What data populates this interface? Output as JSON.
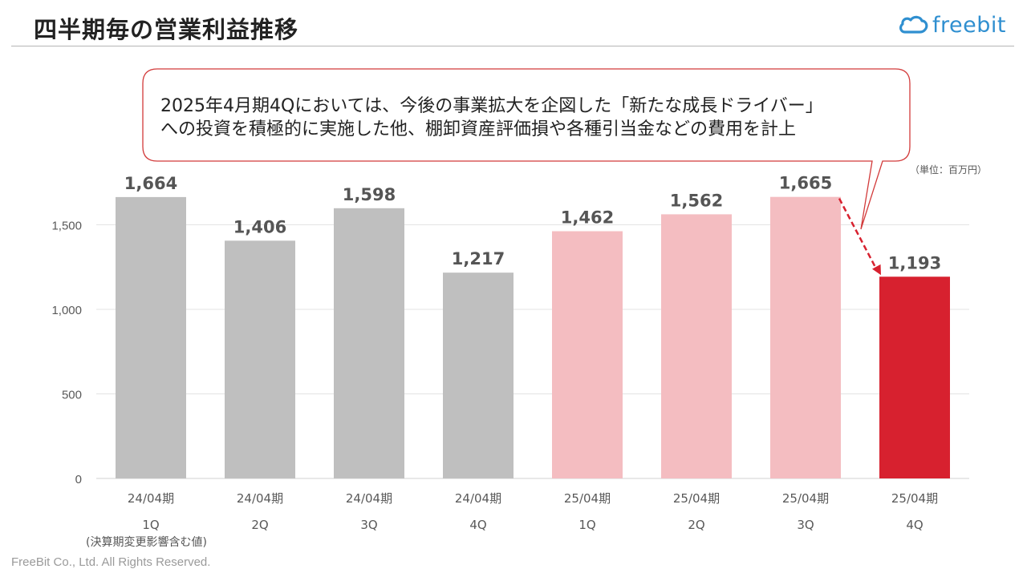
{
  "header": {
    "title": "四半期毎の営業利益推移",
    "logo_text": "freebit",
    "logo_icon": "freebit-cloud-icon"
  },
  "callout": {
    "line1": "2025年4月期4Qにおいては、今後の事業拡大を企図した「新たな成長ドライバー」",
    "line2": "への投資を積極的に実施した他、棚卸資産評価損や各種引当金などの費用を計上"
  },
  "unit_label": "（単位：百万円）",
  "note": "(決算期変更影響含む値)",
  "footer": "FreeBit Co., Ltd. All Rights Reserved.",
  "colors": {
    "gray_bar": "#bfbfbf",
    "pink_bar": "#f4bdc1",
    "red_bar": "#d7212f",
    "callout_border": "#d23a3a",
    "grid": "#e3e3e3"
  },
  "chart_data": {
    "type": "bar",
    "categories": [
      {
        "period": "24/04期",
        "quarter": "1Q"
      },
      {
        "period": "24/04期",
        "quarter": "2Q"
      },
      {
        "period": "24/04期",
        "quarter": "3Q"
      },
      {
        "period": "24/04期",
        "quarter": "4Q"
      },
      {
        "period": "25/04期",
        "quarter": "1Q"
      },
      {
        "period": "25/04期",
        "quarter": "2Q"
      },
      {
        "period": "25/04期",
        "quarter": "3Q"
      },
      {
        "period": "25/04期",
        "quarter": "4Q"
      }
    ],
    "values": [
      1664,
      1406,
      1598,
      1217,
      1462,
      1562,
      1665,
      1193
    ],
    "value_labels": [
      "1,664",
      "1,406",
      "1,598",
      "1,217",
      "1,462",
      "1,562",
      "1,665",
      "1,193"
    ],
    "bar_colors": [
      "gray_bar",
      "gray_bar",
      "gray_bar",
      "gray_bar",
      "pink_bar",
      "pink_bar",
      "pink_bar",
      "red_bar"
    ],
    "ylim": [
      0,
      1800
    ],
    "yticks": [
      {
        "value": 0,
        "label": "0"
      },
      {
        "value": 500,
        "label": "500"
      },
      {
        "value": 1000,
        "label": "1,000"
      },
      {
        "value": 1500,
        "label": "1,500"
      }
    ],
    "grid": true,
    "title": "",
    "xlabel": "",
    "ylabel": ""
  }
}
